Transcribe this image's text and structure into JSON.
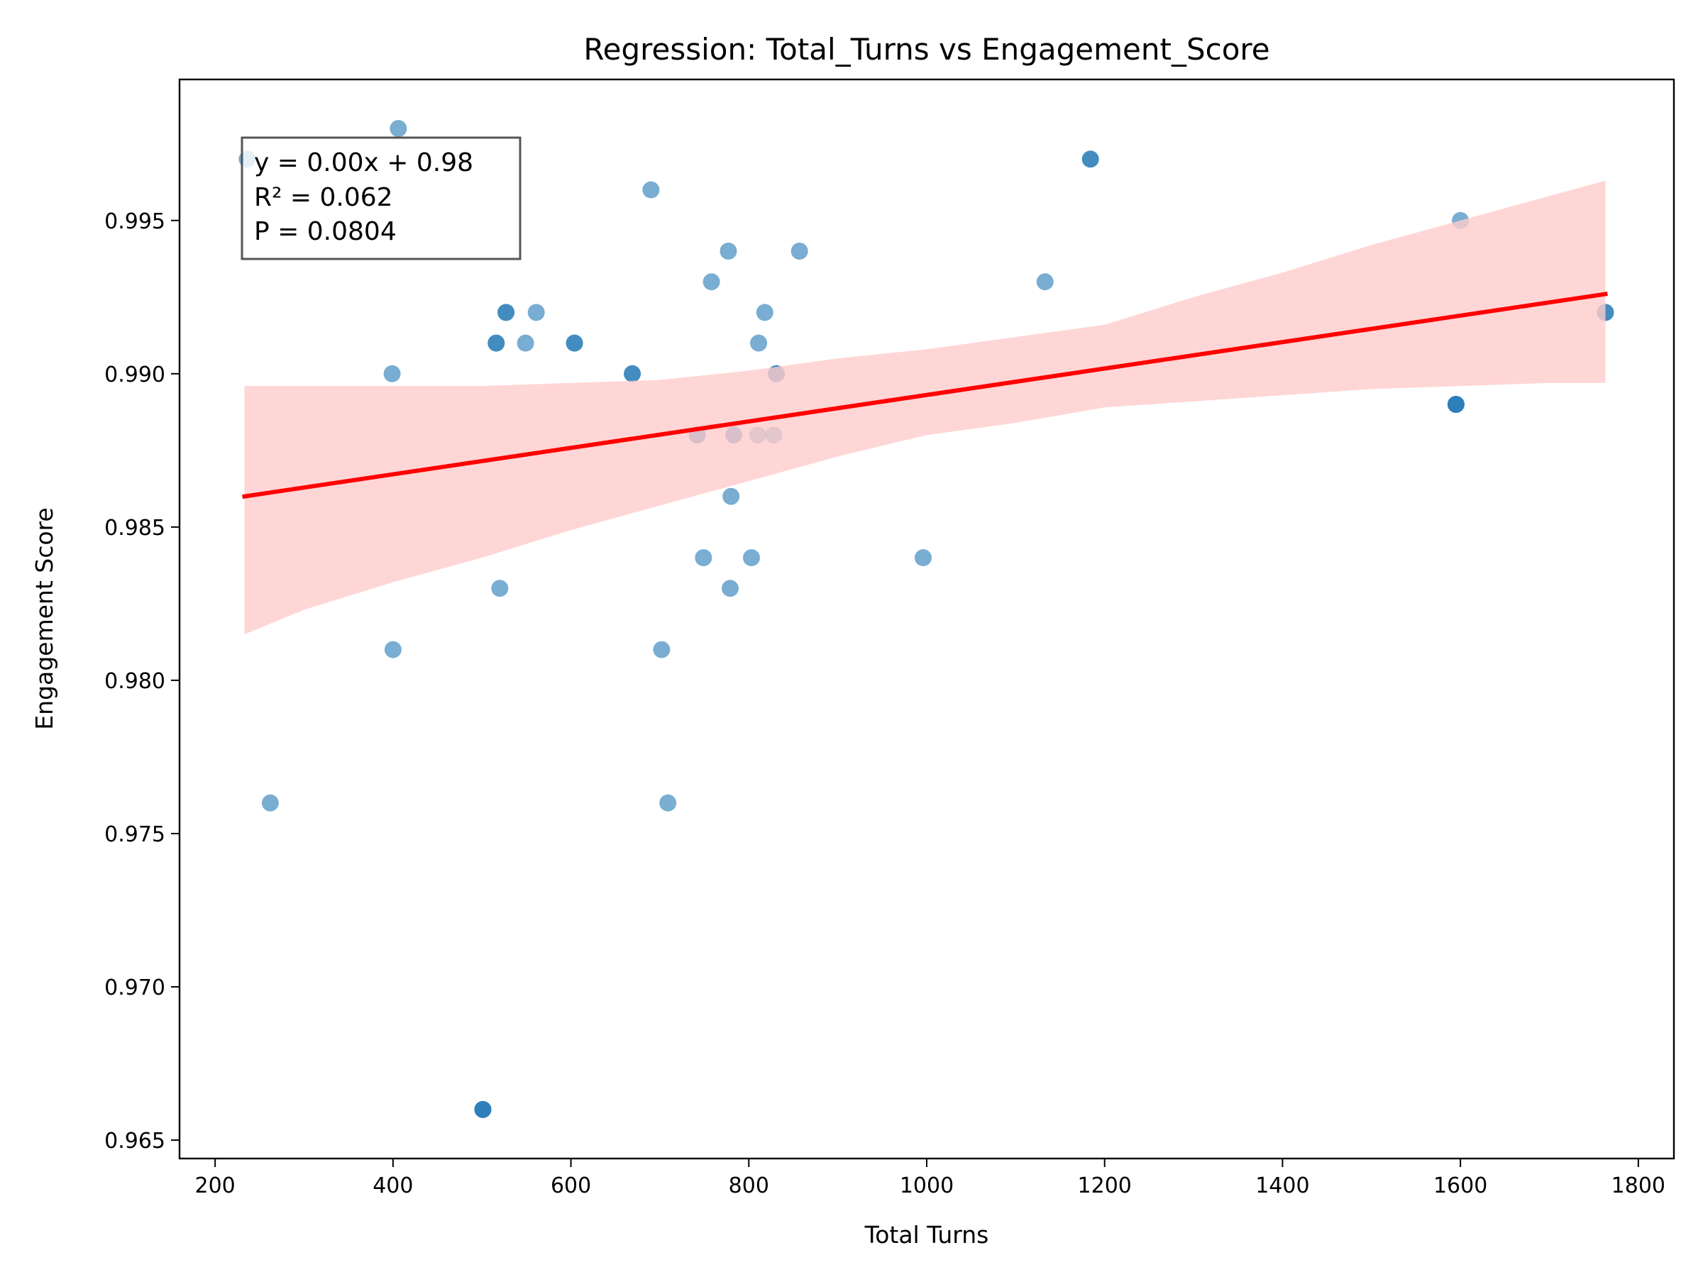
{
  "chart_data": {
    "type": "scatter",
    "title": "Regression: Total_Turns vs Engagement_Score",
    "xlabel": "Total Turns",
    "ylabel": "Engagement Score",
    "xlim": [
      160,
      1840
    ],
    "ylim": [
      0.9644,
      0.9996
    ],
    "xticks": [
      200,
      400,
      600,
      800,
      1000,
      1200,
      1400,
      1600,
      1800
    ],
    "xtick_labels": [
      "200",
      "400",
      "600",
      "800",
      "1000",
      "1200",
      "1400",
      "1600",
      "1800"
    ],
    "yticks": [
      0.965,
      0.97,
      0.975,
      0.98,
      0.985,
      0.99,
      0.995
    ],
    "ytick_labels": [
      "0.965",
      "0.970",
      "0.975",
      "0.980",
      "0.985",
      "0.990",
      "0.995"
    ],
    "grid": false,
    "point_color": "#1f77b4",
    "line_color": "#ff0000",
    "band_color": "#ffcccc",
    "annotation": [
      "y = 0.00x + 0.98",
      "R² = 0.062",
      "P = 0.0804"
    ],
    "points": [
      {
        "x": 236,
        "y": 0.997
      },
      {
        "x": 406,
        "y": 0.998
      },
      {
        "x": 690,
        "y": 0.996
      },
      {
        "x": 1184,
        "y": 0.997
      },
      {
        "x": 1184,
        "y": 0.997
      },
      {
        "x": 1600,
        "y": 0.995
      },
      {
        "x": 777,
        "y": 0.994
      },
      {
        "x": 857,
        "y": 0.994
      },
      {
        "x": 758,
        "y": 0.993
      },
      {
        "x": 1133,
        "y": 0.993
      },
      {
        "x": 527,
        "y": 0.992
      },
      {
        "x": 527,
        "y": 0.992
      },
      {
        "x": 561,
        "y": 0.992
      },
      {
        "x": 818,
        "y": 0.992
      },
      {
        "x": 1763,
        "y": 0.992
      },
      {
        "x": 1763,
        "y": 0.992
      },
      {
        "x": 516,
        "y": 0.991
      },
      {
        "x": 516,
        "y": 0.991
      },
      {
        "x": 549,
        "y": 0.991
      },
      {
        "x": 604,
        "y": 0.991
      },
      {
        "x": 604,
        "y": 0.991
      },
      {
        "x": 811,
        "y": 0.991
      },
      {
        "x": 399,
        "y": 0.99
      },
      {
        "x": 669,
        "y": 0.99
      },
      {
        "x": 669,
        "y": 0.99
      },
      {
        "x": 831,
        "y": 0.99
      },
      {
        "x": 831,
        "y": 0.99
      },
      {
        "x": 1595,
        "y": 0.989
      },
      {
        "x": 1595,
        "y": 0.989
      },
      {
        "x": 1595,
        "y": 0.989
      },
      {
        "x": 742,
        "y": 0.988
      },
      {
        "x": 742,
        "y": 0.988
      },
      {
        "x": 783,
        "y": 0.988
      },
      {
        "x": 783,
        "y": 0.988
      },
      {
        "x": 810,
        "y": 0.988
      },
      {
        "x": 828,
        "y": 0.988
      },
      {
        "x": 780,
        "y": 0.986
      },
      {
        "x": 749,
        "y": 0.984
      },
      {
        "x": 803,
        "y": 0.984
      },
      {
        "x": 996,
        "y": 0.984
      },
      {
        "x": 520,
        "y": 0.983
      },
      {
        "x": 779,
        "y": 0.983
      },
      {
        "x": 400,
        "y": 0.981
      },
      {
        "x": 702,
        "y": 0.981
      },
      {
        "x": 262,
        "y": 0.976
      },
      {
        "x": 709,
        "y": 0.976
      },
      {
        "x": 501,
        "y": 0.966
      },
      {
        "x": 501,
        "y": 0.966
      },
      {
        "x": 501,
        "y": 0.966
      }
    ],
    "regression_line": {
      "x": [
        233,
        1763
      ],
      "y": [
        0.986,
        0.9926
      ]
    },
    "confidence_band": {
      "x": [
        233,
        300,
        400,
        500,
        600,
        700,
        800,
        900,
        1000,
        1100,
        1200,
        1300,
        1400,
        1500,
        1600,
        1700,
        1763
      ],
      "lower": [
        0.9815,
        0.9823,
        0.9832,
        0.984,
        0.9849,
        0.9857,
        0.9865,
        0.9873,
        0.988,
        0.9884,
        0.9889,
        0.9891,
        0.9893,
        0.9895,
        0.9896,
        0.9897,
        0.9897
      ],
      "upper": [
        0.9896,
        0.9896,
        0.9896,
        0.9896,
        0.9897,
        0.9898,
        0.9901,
        0.9905,
        0.9908,
        0.9912,
        0.9916,
        0.9925,
        0.9933,
        0.9942,
        0.995,
        0.9958,
        0.9963
      ]
    }
  }
}
